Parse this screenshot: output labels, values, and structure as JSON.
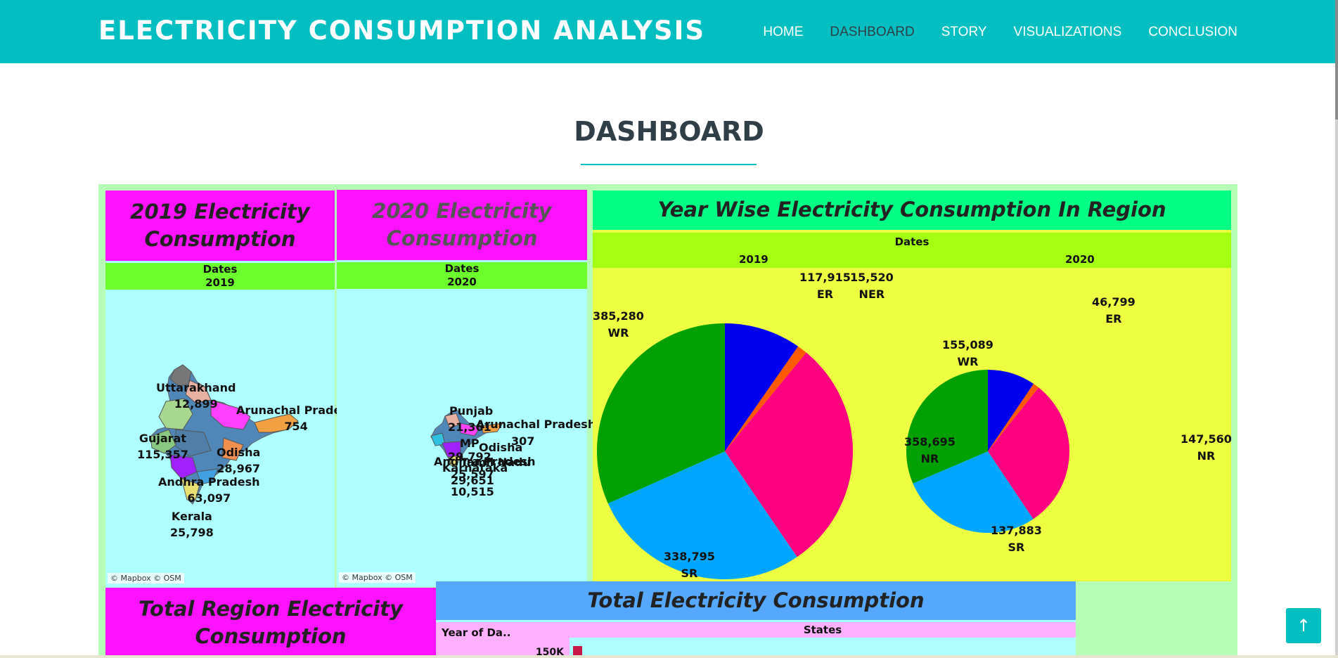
{
  "header": {
    "brand": "ELECTRICITY CONSUMPTION ANALYSIS",
    "nav": [
      {
        "label": "HOME"
      },
      {
        "label": "DASHBOARD"
      },
      {
        "label": "STORY"
      },
      {
        "label": "VISUALIZATIONS"
      },
      {
        "label": "CONCLUSION"
      }
    ],
    "active_nav": "DASHBOARD"
  },
  "page": {
    "title": "DASHBOARD"
  },
  "map2019": {
    "title_line1": "2019 Electricity",
    "title_line2": "Consumption",
    "dates_label": "Dates",
    "year": "2019",
    "labels": [
      {
        "state": "Uttarakhand",
        "value": "12,899"
      },
      {
        "state": "Arunachal Pradesh",
        "value": "754"
      },
      {
        "state": "Gujarat",
        "value": "115,357"
      },
      {
        "state": "Odisha",
        "value": "28,967"
      },
      {
        "state": "Andhra Pradesh",
        "value": "63,097"
      },
      {
        "state": "Kerala",
        "value": "25,798"
      }
    ],
    "attribution": "© Mapbox  © OSM"
  },
  "map2020": {
    "title_line1": "2020 Electricity",
    "title_line2": "Consumption",
    "dates_label": "Dates",
    "year": "2020",
    "labels": [
      {
        "text": "Punjab"
      },
      {
        "text": "21,361"
      },
      {
        "text": "Arunachal Pradesh"
      },
      {
        "text": "307"
      },
      {
        "text": "MP"
      },
      {
        "text": "Odisha"
      },
      {
        "text": "29,792"
      },
      {
        "text": "Andhra Pradesh"
      },
      {
        "text": "Karnataka"
      },
      {
        "text": "Tamil Nadu"
      },
      {
        "text": "25,597"
      },
      {
        "text": "29,651"
      },
      {
        "text": "10,515"
      }
    ],
    "attribution": "© Mapbox  © OSM"
  },
  "region": {
    "title": "Year Wise Electricity Consumption In Region",
    "dates_label": "Dates",
    "colors": {
      "ER": "#0000ee",
      "NER": "#ff5a00",
      "NR": "#ff0080",
      "SR": "#00a6ff",
      "WR": "#00a000"
    }
  },
  "chart_data": {
    "type": "pie",
    "categories": [
      "ER",
      "NER",
      "NR",
      "SR",
      "WR"
    ],
    "series": [
      {
        "name": "2019",
        "values": [
          117915,
          15520,
          358695,
          338795,
          385280
        ]
      },
      {
        "name": "2020",
        "values": [
          46799,
          6000,
          147560,
          137883,
          155089
        ]
      }
    ],
    "labels": {
      "2019": [
        {
          "region": "ER",
          "value": "117,915"
        },
        {
          "region": "NER",
          "value": "15,520"
        },
        {
          "region": "NR",
          "value": "358,695"
        },
        {
          "region": "SR",
          "value": "338,795"
        },
        {
          "region": "WR",
          "value": "385,280"
        }
      ],
      "2020": [
        {
          "region": "ER",
          "value": "46,799"
        },
        {
          "region": "NR",
          "value": "147,560"
        },
        {
          "region": "SR",
          "value": "137,883"
        },
        {
          "region": "WR",
          "value": "155,089"
        }
      ]
    }
  },
  "total_region": {
    "title_line1": "Total Region Electricity",
    "title_line2": "Consumption"
  },
  "total": {
    "title": "Total Electricity Consumption",
    "row_header": "Year of Da..",
    "col_header": "States",
    "axis_tick": "150K"
  }
}
